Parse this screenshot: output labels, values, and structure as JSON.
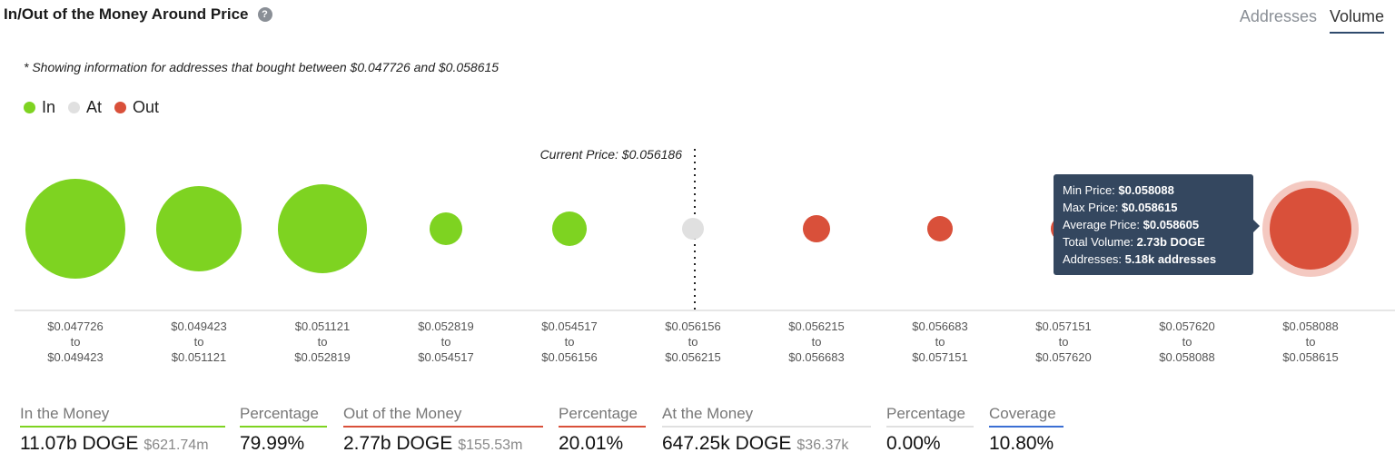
{
  "header": {
    "title": "In/Out of the Money Around Price",
    "help_icon": "question-circle-icon",
    "tabs": [
      {
        "label": "Addresses",
        "active": false
      },
      {
        "label": "Volume",
        "active": true
      }
    ]
  },
  "note": "* Showing information for addresses that bought between $0.047726 and $0.058615",
  "legend": [
    {
      "label": "In",
      "color": "#7ed321"
    },
    {
      "label": "At",
      "color": "#e0e0e0"
    },
    {
      "label": "Out",
      "color": "#d9503a"
    }
  ],
  "chart_data": {
    "type": "bubble",
    "current_price_label": "Current Price: $0.056186",
    "categories": [
      {
        "from": "$0.047726",
        "to": "$0.049423",
        "status": "In"
      },
      {
        "from": "$0.049423",
        "to": "$0.051121",
        "status": "In"
      },
      {
        "from": "$0.051121",
        "to": "$0.052819",
        "status": "In"
      },
      {
        "from": "$0.052819",
        "to": "$0.054517",
        "status": "In"
      },
      {
        "from": "$0.054517",
        "to": "$0.056156",
        "status": "In"
      },
      {
        "from": "$0.056156",
        "to": "$0.056215",
        "status": "At"
      },
      {
        "from": "$0.056215",
        "to": "$0.056683",
        "status": "Out"
      },
      {
        "from": "$0.056683",
        "to": "$0.057151",
        "status": "Out"
      },
      {
        "from": "$0.057151",
        "to": "$0.057620",
        "status": "Out"
      },
      {
        "from": "$0.057620",
        "to": "$0.058088",
        "status": "Out"
      },
      {
        "from": "$0.058088",
        "to": "$0.058615",
        "status": "Out"
      }
    ],
    "to_word": "to",
    "tooltip": {
      "min_label": "Min Price:",
      "min": "$0.058088",
      "max_label": "Max Price:",
      "max": "$0.058615",
      "avg_label": "Average Price:",
      "avg": "$0.058605",
      "vol_label": "Total Volume:",
      "vol": "2.73b DOGE",
      "addr_label": "Addresses:",
      "addr": "5.18k addresses"
    }
  },
  "stats": [
    {
      "label": "In the Money",
      "value": "11.07b DOGE",
      "sub": "$621.74m",
      "color": "#7ed321"
    },
    {
      "label": "Percentage",
      "value": "79.99%",
      "color": "#7ed321"
    },
    {
      "label": "Out of the Money",
      "value": "2.77b DOGE",
      "sub": "$155.53m",
      "color": "#d9503a"
    },
    {
      "label": "Percentage",
      "value": "20.01%",
      "color": "#d9503a"
    },
    {
      "label": "At the Money",
      "value": "647.25k DOGE",
      "sub": "$36.37k",
      "color": "#e0e0e0"
    },
    {
      "label": "Percentage",
      "value": "0.00%",
      "color": "#e0e0e0"
    },
    {
      "label": "Coverage",
      "value": "10.80%",
      "color": "#3b6fd4"
    }
  ]
}
